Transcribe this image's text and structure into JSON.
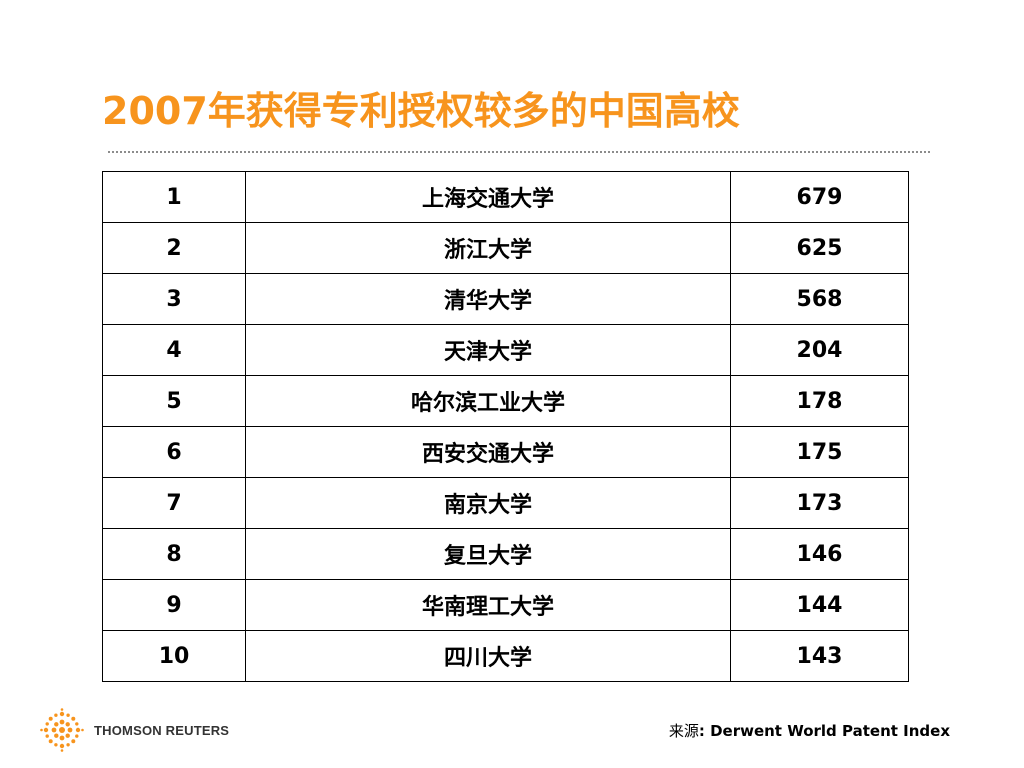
{
  "slide": {
    "title": "2007年获得专利授权较多的中国高校",
    "title_color": "#f7941d"
  },
  "table": {
    "rows": [
      {
        "rank": "1",
        "name": "上海交通大学",
        "count": "679"
      },
      {
        "rank": "2",
        "name": "浙江大学",
        "count": "625"
      },
      {
        "rank": "3",
        "name": "清华大学",
        "count": "568"
      },
      {
        "rank": "4",
        "name": "天津大学",
        "count": "204"
      },
      {
        "rank": "5",
        "name": "哈尔滨工业大学",
        "count": "178"
      },
      {
        "rank": "6",
        "name": "西安交通大学",
        "count": "175"
      },
      {
        "rank": "7",
        "name": "南京大学",
        "count": "173"
      },
      {
        "rank": "8",
        "name": "复旦大学",
        "count": "146"
      },
      {
        "rank": "9",
        "name": "华南理工大学",
        "count": "144"
      },
      {
        "rank": "10",
        "name": "四川大学",
        "count": "143"
      }
    ]
  },
  "footer": {
    "logo_text": "THOMSON REUTERS",
    "logo_color": "#f7941d",
    "source_prefix": "来源",
    "source_text": ": Derwent World Patent Index"
  }
}
